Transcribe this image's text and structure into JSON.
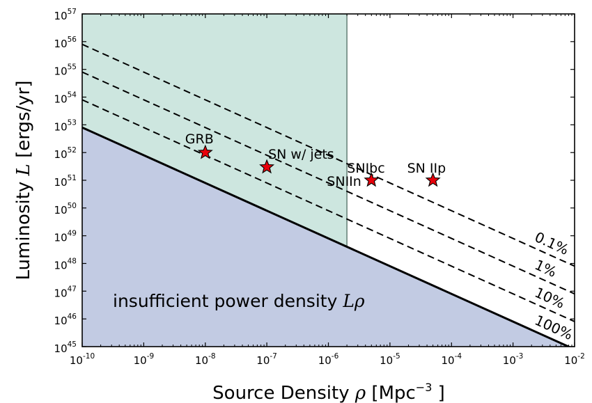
{
  "chart_data": {
    "type": "scatter",
    "title": "",
    "xlabel": "Source Density",
    "xlabel_symbol": "ρ",
    "xlabel_unit_pre": "[Mpc",
    "xlabel_unit_exp": "−3",
    "xlabel_unit_post": "]",
    "ylabel": "Luminosity",
    "ylabel_symbol": "L",
    "ylabel_unit": "[ergs/yr]",
    "xscale": "log",
    "yscale": "log",
    "xlim": [
      1e-10,
      0.01
    ],
    "ylim": [
      1e+45,
      1e+57
    ],
    "xticks": [
      {
        "base": "10",
        "exp": "-10",
        "value": 1e-10
      },
      {
        "base": "10",
        "exp": "-9",
        "value": 1e-09
      },
      {
        "base": "10",
        "exp": "-8",
        "value": 1e-08
      },
      {
        "base": "10",
        "exp": "-7",
        "value": 1e-07
      },
      {
        "base": "10",
        "exp": "-6",
        "value": 1e-06
      },
      {
        "base": "10",
        "exp": "-5",
        "value": 1e-05
      },
      {
        "base": "10",
        "exp": "-4",
        "value": 0.0001
      },
      {
        "base": "10",
        "exp": "-3",
        "value": 0.001
      },
      {
        "base": "10",
        "exp": "-2",
        "value": 0.01
      }
    ],
    "yticks": [
      {
        "base": "10",
        "exp": "45",
        "value": 1e+45
      },
      {
        "base": "10",
        "exp": "46",
        "value": 1e+46
      },
      {
        "base": "10",
        "exp": "47",
        "value": 1e+47
      },
      {
        "base": "10",
        "exp": "48",
        "value": 1e+48
      },
      {
        "base": "10",
        "exp": "49",
        "value": 1e+49
      },
      {
        "base": "10",
        "exp": "50",
        "value": 1e+50
      },
      {
        "base": "10",
        "exp": "51",
        "value": 1e+51
      },
      {
        "base": "10",
        "exp": "52",
        "value": 1e+52
      },
      {
        "base": "10",
        "exp": "53",
        "value": 1e+53
      },
      {
        "base": "10",
        "exp": "54",
        "value": 1e+54
      },
      {
        "base": "10",
        "exp": "55",
        "value": 1e+55
      },
      {
        "base": "10",
        "exp": "56",
        "value": 1e+56
      },
      {
        "base": "10",
        "exp": "57",
        "value": 1e+57
      }
    ],
    "points": [
      {
        "label": "GRB",
        "x": 1e-08,
        "y": 1e+52
      },
      {
        "label": "SN w/ jets",
        "x": 1e-07,
        "y": 3e+51
      },
      {
        "label": "SNIbc",
        "x": 5e-06,
        "y": 1e+51
      },
      {
        "label": "SNIIn",
        "x": 5e-06,
        "y": 1e+51
      },
      {
        "label": "SN IIp",
        "x": 5e-05,
        "y": 1e+51
      }
    ],
    "lines": [
      {
        "label": "100%",
        "style": "solid",
        "points": [
          [
            1e-10,
            8e+52
          ],
          [
            0.01,
            8e+44
          ]
        ]
      },
      {
        "label": "10%",
        "style": "dashed",
        "points": [
          [
            1e-10,
            8e+53
          ],
          [
            0.01,
            8e+45
          ]
        ]
      },
      {
        "label": "1%",
        "style": "dashed",
        "points": [
          [
            1e-10,
            8e+54
          ],
          [
            0.01,
            8e+46
          ]
        ]
      },
      {
        "label": "0.1%",
        "style": "dashed",
        "points": [
          [
            1e-10,
            8e+55
          ],
          [
            0.01,
            8e+47
          ]
        ]
      }
    ],
    "regions": [
      {
        "label": "insufficient power density",
        "label_symbol": "Lρ",
        "color": "#c2cbe3"
      },
      {
        "label": "",
        "color": "#cde6df",
        "x_max": 2e-06
      }
    ],
    "colors": {
      "insufficient_fill": "#c2cbe3",
      "shaded_fill": "#cde6df",
      "star": "#e8000b",
      "line": "#000000"
    },
    "grid": false,
    "legend": "none"
  }
}
